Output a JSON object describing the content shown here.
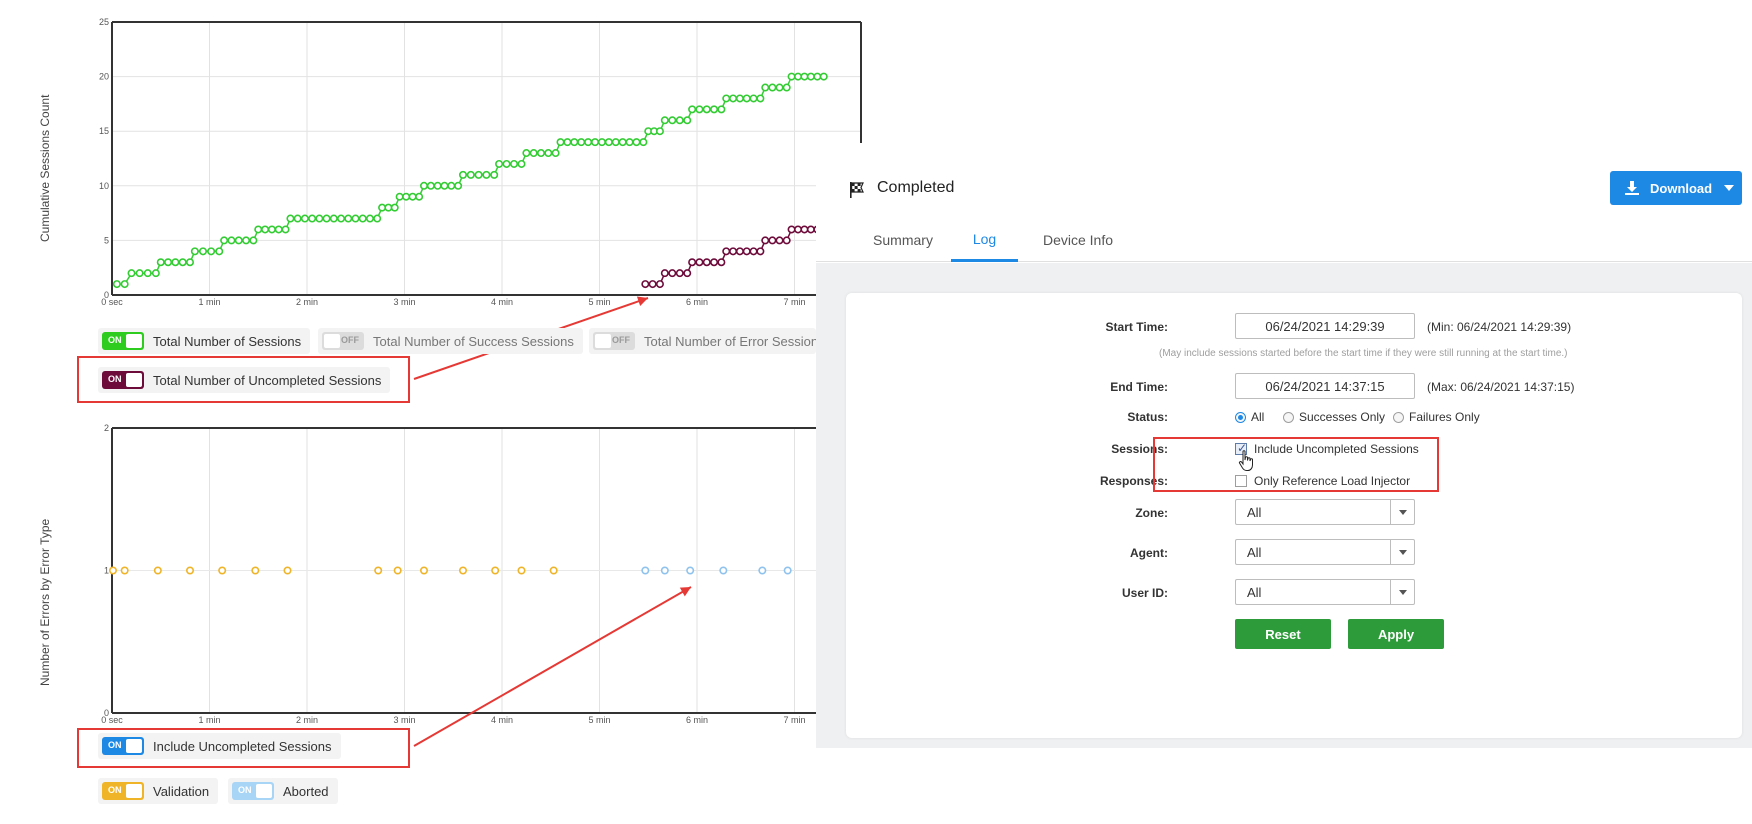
{
  "top_chart": {
    "ylabel": "Cumulative Sessions Count",
    "y_ticks": [
      "0",
      "5",
      "10",
      "15",
      "20",
      "25"
    ],
    "x_ticks": [
      "0 sec",
      "1 min",
      "2 min",
      "3 min",
      "4 min",
      "5 min",
      "6 min",
      "7 min"
    ]
  },
  "bottom_chart": {
    "ylabel": "Number of Errors by Error Type",
    "y_ticks": [
      "0",
      "1",
      "2"
    ],
    "x_ticks": [
      "0 sec",
      "1 min",
      "2 min",
      "3 min",
      "4 min",
      "5 min",
      "6 min",
      "7 min"
    ]
  },
  "chart_data": [
    {
      "type": "scatter",
      "ylabel": "Cumulative Sessions Count",
      "ylim": [
        0,
        25
      ],
      "xlim_minutes": [
        0,
        7.3
      ],
      "series": [
        {
          "name": "Total Number of Sessions",
          "color": "#33cc33",
          "steps": [
            {
              "x": [
                0.05,
                0.13
              ],
              "y": 1
            },
            {
              "x": [
                0.2,
                0.45
              ],
              "y": 2
            },
            {
              "x": [
                0.5,
                0.8
              ],
              "y": 3
            },
            {
              "x": [
                0.85,
                1.1
              ],
              "y": 4
            },
            {
              "x": [
                1.15,
                1.45
              ],
              "y": 5
            },
            {
              "x": [
                1.5,
                1.78
              ],
              "y": 6
            },
            {
              "x": [
                1.83,
                2.72
              ],
              "y": 7
            },
            {
              "x": [
                2.77,
                2.9
              ],
              "y": 8
            },
            {
              "x": [
                2.95,
                3.15
              ],
              "y": 9
            },
            {
              "x": [
                3.2,
                3.55
              ],
              "y": 10
            },
            {
              "x": [
                3.6,
                3.92
              ],
              "y": 11
            },
            {
              "x": [
                3.97,
                4.2
              ],
              "y": 12
            },
            {
              "x": [
                4.25,
                4.55
              ],
              "y": 13
            },
            {
              "x": [
                4.6,
                5.45
              ],
              "y": 14
            },
            {
              "x": [
                5.5,
                5.62
              ],
              "y": 15
            },
            {
              "x": [
                5.67,
                5.9
              ],
              "y": 16
            },
            {
              "x": [
                5.95,
                6.25
              ],
              "y": 17
            },
            {
              "x": [
                6.3,
                6.65
              ],
              "y": 18
            },
            {
              "x": [
                6.7,
                6.92
              ],
              "y": 19
            },
            {
              "x": [
                6.97,
                7.3
              ],
              "y": 20
            }
          ]
        },
        {
          "name": "Total Number of Uncompleted Sessions",
          "color": "#6d0b3a",
          "steps": [
            {
              "x": [
                5.47,
                5.62
              ],
              "y": 1
            },
            {
              "x": [
                5.67,
                5.9
              ],
              "y": 2
            },
            {
              "x": [
                5.95,
                6.25
              ],
              "y": 3
            },
            {
              "x": [
                6.3,
                6.65
              ],
              "y": 4
            },
            {
              "x": [
                6.7,
                6.92
              ],
              "y": 5
            },
            {
              "x": [
                6.97,
                7.3
              ],
              "y": 6
            }
          ]
        }
      ]
    },
    {
      "type": "scatter",
      "ylabel": "Number of Errors by Error Type",
      "ylim": [
        0,
        2
      ],
      "xlim_minutes": [
        0,
        7.3
      ],
      "series": [
        {
          "name": "Validation",
          "color": "#f0b429",
          "x": [
            0.01,
            0.13,
            0.47,
            0.8,
            1.13,
            1.47,
            1.8,
            2.73,
            2.93,
            3.2,
            3.6,
            3.93,
            4.2,
            4.53
          ],
          "y": 1
        },
        {
          "name": "Aborted",
          "color": "#8fc3ee",
          "x": [
            5.47,
            5.67,
            5.93,
            6.27,
            6.67,
            6.93
          ],
          "y": 1
        }
      ]
    }
  ],
  "legend_top": {
    "total_sessions": {
      "label": "Total Number of Sessions",
      "toggle": "ON",
      "color": "#2ecc1f"
    },
    "success_sessions": {
      "label": "Total Number of Success Sessions",
      "toggle": "OFF"
    },
    "error_sessions": {
      "label": "Total Number of Error Sessions",
      "toggle": "OFF"
    },
    "uncompleted_sessions": {
      "label": "Total Number of Uncompleted Sessions",
      "toggle": "ON",
      "color": "#6d0b3a"
    }
  },
  "legend_bottom": {
    "include_uncompleted": {
      "label": "Include Uncompleted Sessions",
      "toggle": "ON",
      "color": "#1e88e5"
    },
    "validation": {
      "label": "Validation",
      "toggle": "ON",
      "color": "#f0b429"
    },
    "aborted": {
      "label": "Aborted",
      "toggle": "ON",
      "color": "#a8d4f5"
    }
  },
  "panel": {
    "status_title": "Completed",
    "download_label": "Download",
    "tabs": [
      {
        "label": "Summary",
        "active": false
      },
      {
        "label": "Log",
        "active": true
      },
      {
        "label": "Device Info",
        "active": false
      }
    ],
    "form": {
      "start_time_label": "Start Time:",
      "start_time_value": "06/24/2021 14:29:39",
      "start_time_min": "(Min: 06/24/2021 14:29:39)",
      "start_time_hint": "(May include sessions started before the start time if they were still running at the start time.)",
      "end_time_label": "End Time:",
      "end_time_value": "06/24/2021 14:37:15",
      "end_time_max": "(Max: 06/24/2021 14:37:15)",
      "status_label": "Status:",
      "status_options": [
        {
          "label": "All",
          "checked": true
        },
        {
          "label": "Successes Only",
          "checked": false
        },
        {
          "label": "Failures Only",
          "checked": false
        }
      ],
      "sessions_label": "Sessions:",
      "sessions_checkbox": {
        "label": "Include Uncompleted Sessions",
        "checked": true
      },
      "responses_label": "Responses:",
      "responses_checkbox": {
        "label": "Only Reference Load Injector",
        "checked": false
      },
      "zone_label": "Zone:",
      "zone_value": "All",
      "agent_label": "Agent:",
      "agent_value": "All",
      "user_id_label": "User ID:",
      "user_id_value": "All",
      "reset_label": "Reset",
      "apply_label": "Apply"
    }
  },
  "colors": {
    "accent": "#1e88e5",
    "highlight": "#e53935",
    "button_green": "#2e9b3a"
  }
}
